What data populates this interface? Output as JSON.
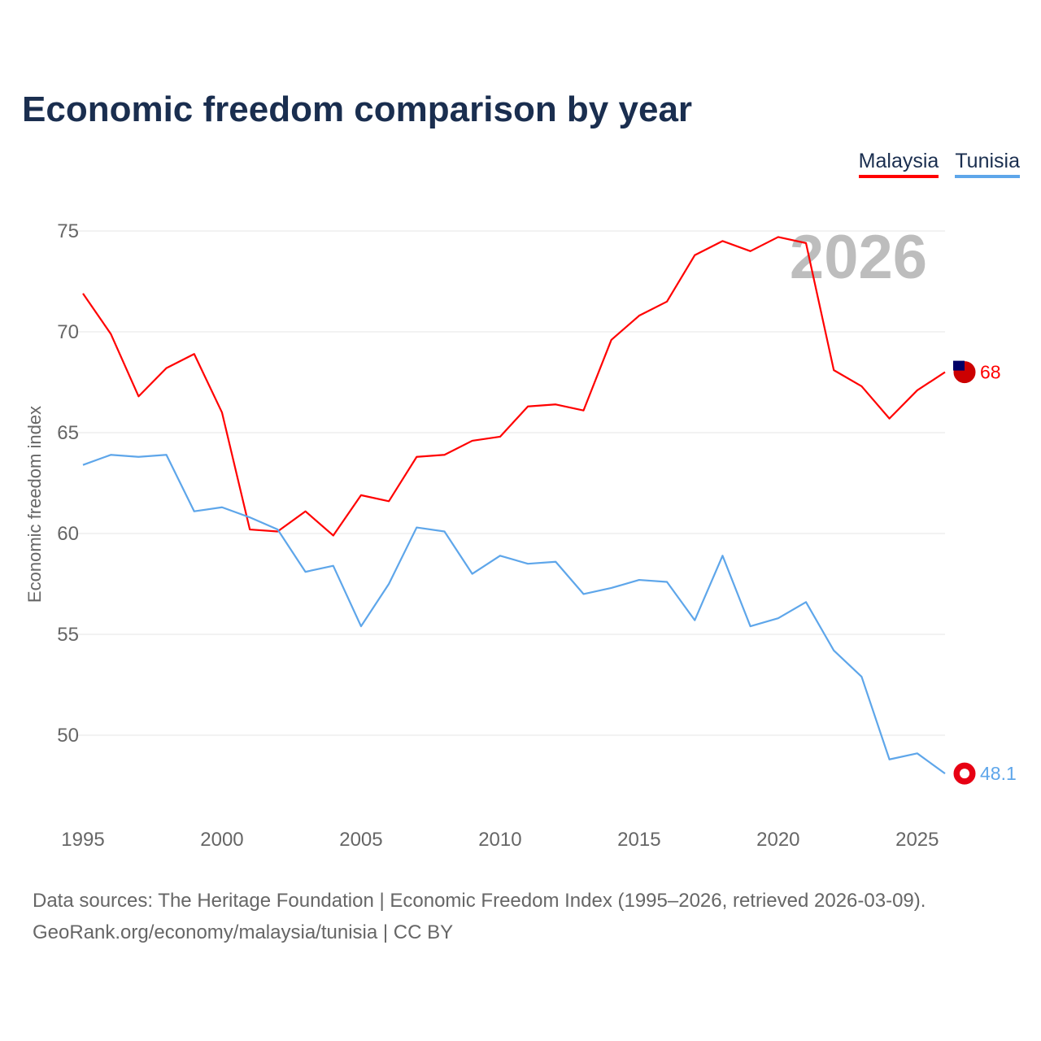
{
  "chart_data": {
    "type": "line",
    "title": "Economic freedom comparison by year",
    "ylabel": "Economic freedom index",
    "xlabel": "",
    "ylim": [
      45.5,
      77
    ],
    "xlim": [
      1995,
      2026
    ],
    "yticks": [
      50,
      55,
      60,
      65,
      70,
      75
    ],
    "xticks": [
      1995,
      2000,
      2005,
      2010,
      2015,
      2020,
      2025
    ],
    "grid": true,
    "legend_position": "top-right",
    "year_watermark": "2026",
    "x": [
      1995,
      1996,
      1997,
      1998,
      1999,
      2000,
      2001,
      2002,
      2003,
      2004,
      2005,
      2006,
      2007,
      2008,
      2009,
      2010,
      2011,
      2012,
      2013,
      2014,
      2015,
      2016,
      2017,
      2018,
      2019,
      2020,
      2021,
      2022,
      2023,
      2024,
      2025,
      2026
    ],
    "series": [
      {
        "name": "Malaysia",
        "color": "#ff0000",
        "end_label": "68",
        "values": [
          71.9,
          69.9,
          66.8,
          68.2,
          68.9,
          66.0,
          60.2,
          60.1,
          61.1,
          59.9,
          61.9,
          61.6,
          63.8,
          63.9,
          64.6,
          64.8,
          66.3,
          66.4,
          66.1,
          69.6,
          70.8,
          71.5,
          73.8,
          74.5,
          74.0,
          74.7,
          74.4,
          68.1,
          67.3,
          65.7,
          67.1,
          68.0
        ]
      },
      {
        "name": "Tunisia",
        "color": "#5ea6ea",
        "end_label": "48.1",
        "values": [
          63.4,
          63.9,
          63.8,
          63.9,
          61.1,
          61.3,
          60.8,
          60.2,
          58.1,
          58.4,
          55.4,
          57.5,
          60.3,
          60.1,
          58.0,
          58.9,
          58.5,
          58.6,
          57.0,
          57.3,
          57.7,
          57.6,
          55.7,
          58.9,
          55.4,
          55.8,
          56.6,
          54.2,
          52.9,
          48.8,
          49.1,
          48.1
        ]
      }
    ]
  },
  "footer": {
    "line1": "Data sources: The Heritage Foundation | Economic Freedom Index (1995–2026, retrieved 2026-03-09).",
    "line2": "GeoRank.org/economy/malaysia/tunisia | CC BY"
  }
}
